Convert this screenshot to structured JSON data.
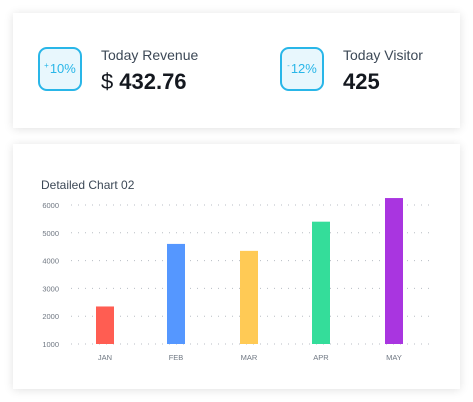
{
  "stats": [
    {
      "badge_sign": "+",
      "badge_value": "10%",
      "label": "Today Revenue",
      "currency": "$",
      "value": "432.76"
    },
    {
      "badge_sign": "-",
      "badge_value": "12%",
      "label": "Today Visitor",
      "currency": "",
      "value": "425"
    }
  ],
  "chart_title": "Detailed Chart 02",
  "chart_data": {
    "type": "bar",
    "categories": [
      "JAN",
      "FEB",
      "MAR",
      "APR",
      "MAY"
    ],
    "values": [
      2350,
      4600,
      4350,
      5400,
      6250
    ],
    "colors": [
      "#ff5d52",
      "#5597ff",
      "#ffca55",
      "#34dd9a",
      "#a935e0"
    ],
    "ylim": [
      1000,
      6000
    ],
    "yticks": [
      1000,
      2000,
      3000,
      4000,
      5000,
      6000
    ],
    "grid": true
  }
}
